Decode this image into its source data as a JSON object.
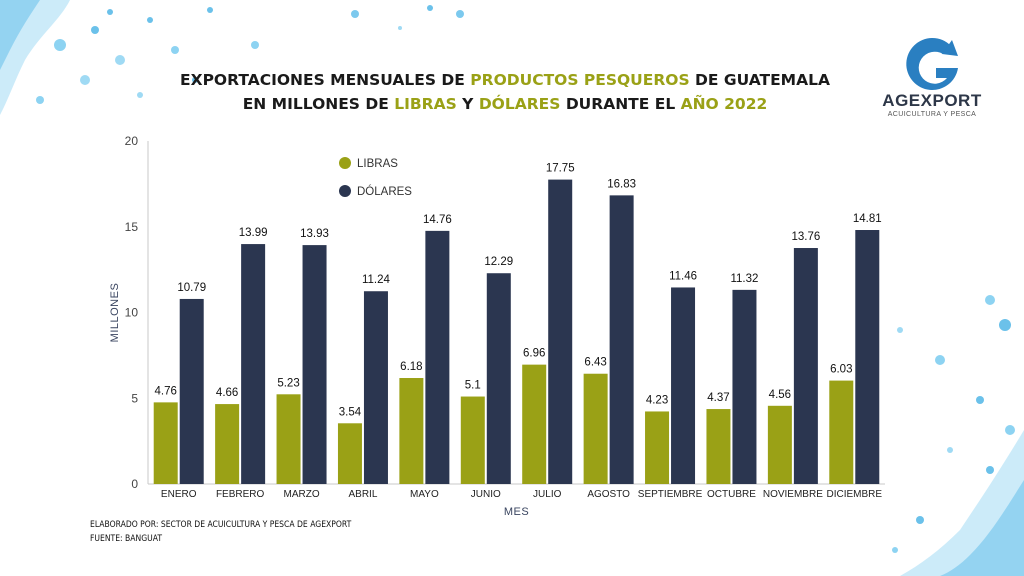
{
  "title": {
    "line1": [
      {
        "text": "EXPORTACIONES MENSUALES DE ",
        "highlight": false
      },
      {
        "text": "PRODUCTOS PESQUEROS",
        "highlight": true
      },
      {
        "text": " DE GUATEMALA",
        "highlight": false
      }
    ],
    "line2": [
      {
        "text": "EN MILLONES DE ",
        "highlight": false
      },
      {
        "text": "LIBRAS",
        "highlight": true
      },
      {
        "text": " Y ",
        "highlight": false
      },
      {
        "text": "DÓLARES",
        "highlight": true
      },
      {
        "text": " DURANTE EL ",
        "highlight": false
      },
      {
        "text": "AÑO 2022",
        "highlight": true
      }
    ]
  },
  "logo": {
    "name": "AGEXPORT",
    "subtitle": "ACUICULTURA Y PESCA",
    "icon": "agexport-g-logo-icon"
  },
  "footer": {
    "line1": "ELABORADO POR: SECTOR DE ACUICULTURA Y PESCA DE AGEXPORT",
    "line2": "FUENTE:  BANGUAT"
  },
  "colors": {
    "libras": "#9aa116",
    "dolares": "#2b3650",
    "highlight": "#9aa116",
    "logo": "#2a7fc1"
  },
  "chart_data": {
    "type": "bar",
    "categories": [
      "ENERO",
      "FEBRERO",
      "MARZO",
      "ABRIL",
      "MAYO",
      "JUNIO",
      "JULIO",
      "AGOSTO",
      "SEPTIEMBRE",
      "OCTUBRE",
      "NOVIEMBRE",
      "DICIEMBRE"
    ],
    "series": [
      {
        "name": "LIBRAS",
        "color": "#9aa116",
        "values": [
          4.76,
          4.66,
          5.23,
          3.54,
          6.18,
          5.1,
          6.96,
          6.43,
          4.23,
          4.37,
          4.56,
          6.03
        ]
      },
      {
        "name": "DÓLARES",
        "color": "#2b3650",
        "values": [
          10.79,
          13.99,
          13.93,
          11.24,
          14.76,
          12.29,
          17.75,
          16.83,
          11.46,
          11.32,
          13.76,
          14.81
        ]
      }
    ],
    "xlabel": "MES",
    "ylabel": "MILLONES",
    "ylim": [
      0,
      20
    ],
    "yticks": [
      0,
      5,
      10,
      15,
      20
    ],
    "legend_position": "top-left",
    "grid": false
  }
}
